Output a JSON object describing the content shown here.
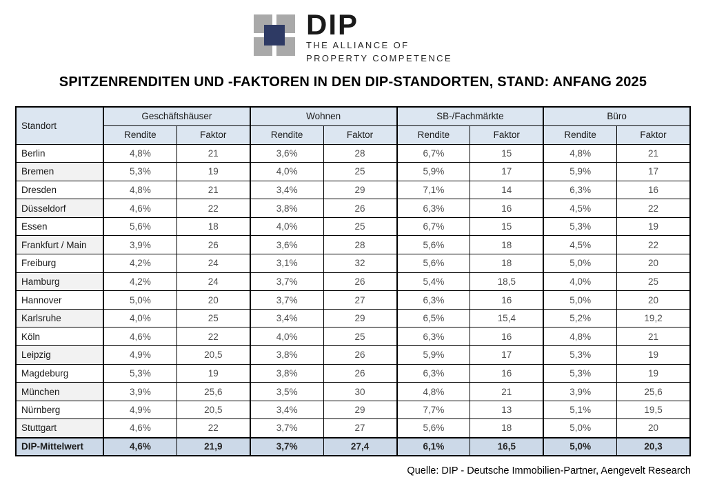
{
  "logo": {
    "name": "DIP",
    "tagline_line1": "THE ALLIANCE OF",
    "tagline_line2": "PROPERTY COMPETENCE"
  },
  "title": "SPITZENRENDITEN UND -FAKTOREN IN DEN DIP-STANDORTEN, STAND: ANFANG 2025",
  "source": "Quelle: DIP - Deutsche Immobilien-Partner, Aengevelt Research",
  "colors": {
    "header_bg": "#dce6f1",
    "summary_bg": "#ccd9e8",
    "row_alt_bg": "#f2f2f2",
    "border": "#000000",
    "logo_gray": "#a9a9a9",
    "logo_blue": "#2e3a64",
    "text_value": "#4d4d4d"
  },
  "chart_data": {
    "type": "table",
    "title": "SPITZENRENDITEN UND -FAKTOREN IN DEN DIP-STANDORTEN, STAND: ANFANG 2025",
    "corner_header": "Standort",
    "column_groups": [
      "Geschäftshäuser",
      "Wohnen",
      "SB-/Fachmärkte",
      "Büro"
    ],
    "sub_headers": [
      "Rendite",
      "Faktor"
    ],
    "rows": [
      {
        "standort": "Berlin",
        "values": [
          "4,8%",
          "21",
          "3,6%",
          "28",
          "6,7%",
          "15",
          "4,8%",
          "21"
        ]
      },
      {
        "standort": "Bremen",
        "values": [
          "5,3%",
          "19",
          "4,0%",
          "25",
          "5,9%",
          "17",
          "5,9%",
          "17"
        ]
      },
      {
        "standort": "Dresden",
        "values": [
          "4,8%",
          "21",
          "3,4%",
          "29",
          "7,1%",
          "14",
          "6,3%",
          "16"
        ]
      },
      {
        "standort": "Düsseldorf",
        "values": [
          "4,6%",
          "22",
          "3,8%",
          "26",
          "6,3%",
          "16",
          "4,5%",
          "22"
        ]
      },
      {
        "standort": "Essen",
        "values": [
          "5,6%",
          "18",
          "4,0%",
          "25",
          "6,7%",
          "15",
          "5,3%",
          "19"
        ]
      },
      {
        "standort": "Frankfurt / Main",
        "values": [
          "3,9%",
          "26",
          "3,6%",
          "28",
          "5,6%",
          "18",
          "4,5%",
          "22"
        ]
      },
      {
        "standort": "Freiburg",
        "values": [
          "4,2%",
          "24",
          "3,1%",
          "32",
          "5,6%",
          "18",
          "5,0%",
          "20"
        ]
      },
      {
        "standort": "Hamburg",
        "values": [
          "4,2%",
          "24",
          "3,7%",
          "26",
          "5,4%",
          "18,5",
          "4,0%",
          "25"
        ]
      },
      {
        "standort": "Hannover",
        "values": [
          "5,0%",
          "20",
          "3,7%",
          "27",
          "6,3%",
          "16",
          "5,0%",
          "20"
        ]
      },
      {
        "standort": "Karlsruhe",
        "values": [
          "4,0%",
          "25",
          "3,4%",
          "29",
          "6,5%",
          "15,4",
          "5,2%",
          "19,2"
        ]
      },
      {
        "standort": "Köln",
        "values": [
          "4,6%",
          "22",
          "4,0%",
          "25",
          "6,3%",
          "16",
          "4,8%",
          "21"
        ]
      },
      {
        "standort": "Leipzig",
        "values": [
          "4,9%",
          "20,5",
          "3,8%",
          "26",
          "5,9%",
          "17",
          "5,3%",
          "19"
        ]
      },
      {
        "standort": "Magdeburg",
        "values": [
          "5,3%",
          "19",
          "3,8%",
          "26",
          "6,3%",
          "16",
          "5,3%",
          "19"
        ]
      },
      {
        "standort": "München",
        "values": [
          "3,9%",
          "25,6",
          "3,5%",
          "30",
          "4,8%",
          "21",
          "3,9%",
          "25,6"
        ]
      },
      {
        "standort": "Nürnberg",
        "values": [
          "4,9%",
          "20,5",
          "3,4%",
          "29",
          "7,7%",
          "13",
          "5,1%",
          "19,5"
        ]
      },
      {
        "standort": "Stuttgart",
        "values": [
          "4,6%",
          "22",
          "3,7%",
          "27",
          "5,6%",
          "18",
          "5,0%",
          "20"
        ]
      }
    ],
    "summary_row": {
      "standort": "DIP-Mittelwert",
      "values": [
        "4,6%",
        "21,9",
        "3,7%",
        "27,4",
        "6,1%",
        "16,5",
        "5,0%",
        "20,3"
      ]
    }
  }
}
